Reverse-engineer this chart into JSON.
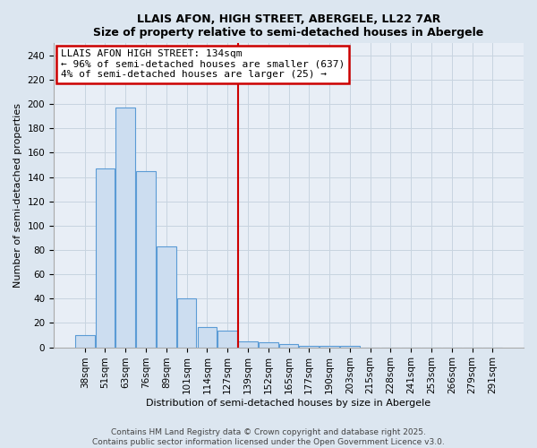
{
  "title": "LLAIS AFON, HIGH STREET, ABERGELE, LL22 7AR",
  "subtitle": "Size of property relative to semi-detached houses in Abergele",
  "xlabel": "Distribution of semi-detached houses by size in Abergele",
  "ylabel": "Number of semi-detached properties",
  "categories": [
    "38sqm",
    "51sqm",
    "63sqm",
    "76sqm",
    "89sqm",
    "101sqm",
    "114sqm",
    "127sqm",
    "139sqm",
    "152sqm",
    "165sqm",
    "177sqm",
    "190sqm",
    "203sqm",
    "215sqm",
    "228sqm",
    "241sqm",
    "253sqm",
    "266sqm",
    "279sqm",
    "291sqm"
  ],
  "values": [
    10,
    147,
    197,
    145,
    83,
    40,
    17,
    14,
    5,
    4,
    3,
    1,
    1,
    1,
    0,
    0,
    0,
    0,
    0,
    0,
    0
  ],
  "bar_color": "#ccddf0",
  "bar_edge_color": "#5b9bd5",
  "vline_x": 8,
  "vline_color": "#cc0000",
  "annotation_line1": "LLAIS AFON HIGH STREET: 134sqm",
  "annotation_line2": "← 96% of semi-detached houses are smaller (637)",
  "annotation_line3": "4% of semi-detached houses are larger (25) →",
  "annotation_box_facecolor": "#ffffff",
  "annotation_box_edgecolor": "#cc0000",
  "ylim": [
    0,
    250
  ],
  "yticks": [
    0,
    20,
    40,
    60,
    80,
    100,
    120,
    140,
    160,
    180,
    200,
    220,
    240
  ],
  "footer_line1": "Contains HM Land Registry data © Crown copyright and database right 2025.",
  "footer_line2": "Contains public sector information licensed under the Open Government Licence v3.0.",
  "bg_color": "#dce6f0",
  "plot_bg_color": "#e8eef6",
  "grid_color": "#c8d4e0",
  "title_fontsize": 9,
  "subtitle_fontsize": 8.5,
  "tick_fontsize": 7.5,
  "label_fontsize": 8,
  "annotation_fontsize": 8,
  "footer_fontsize": 6.5
}
